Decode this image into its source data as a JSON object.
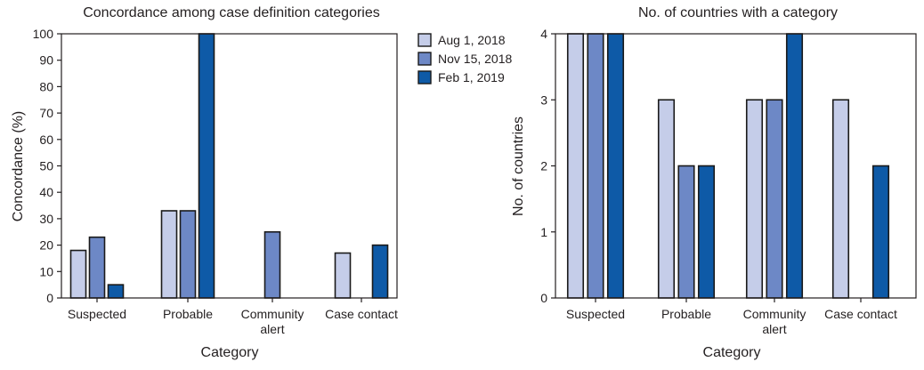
{
  "legend": [
    {
      "name": "Aug 1, 2018",
      "color": "#c5cde9"
    },
    {
      "name": "Nov 15, 2018",
      "color": "#6d88c6"
    },
    {
      "name": "Feb 1, 2019",
      "color": "#0e5aa7"
    }
  ],
  "chart_data": [
    {
      "type": "bar",
      "title": "Concordance among case definition categories",
      "xlabel": "Category",
      "ylabel": "Concordance (%)",
      "ylim": [
        0,
        100
      ],
      "yticks": [
        0,
        10,
        20,
        30,
        40,
        50,
        60,
        70,
        80,
        90,
        100
      ],
      "categories": [
        [
          "Suspected"
        ],
        [
          "Probable"
        ],
        [
          "Community",
          "alert"
        ],
        [
          "Case contact"
        ]
      ],
      "series": [
        {
          "name": "Aug 1, 2018",
          "color": "#c5cde9",
          "values": [
            18,
            33,
            null,
            17
          ]
        },
        {
          "name": "Nov 15, 2018",
          "color": "#6d88c6",
          "values": [
            23,
            33,
            25,
            null
          ]
        },
        {
          "name": "Feb 1, 2019",
          "color": "#0e5aa7",
          "values": [
            5,
            100,
            null,
            20
          ]
        }
      ],
      "legend_position": "right"
    },
    {
      "type": "bar",
      "title": "No. of countries with a category",
      "xlabel": "Category",
      "ylabel": "No. of countries",
      "ylim": [
        0,
        4
      ],
      "yticks": [
        0,
        1,
        2,
        3,
        4
      ],
      "categories": [
        [
          "Suspected"
        ],
        [
          "Probable"
        ],
        [
          "Community",
          "alert"
        ],
        [
          "Case contact"
        ]
      ],
      "series": [
        {
          "name": "Aug 1, 2018",
          "color": "#c5cde9",
          "values": [
            4,
            3,
            3,
            3
          ]
        },
        {
          "name": "Nov 15, 2018",
          "color": "#6d88c6",
          "values": [
            4,
            2,
            3,
            null
          ]
        },
        {
          "name": "Feb 1, 2019",
          "color": "#0e5aa7",
          "values": [
            4,
            2,
            4,
            2
          ]
        }
      ],
      "legend_position": "none"
    }
  ]
}
